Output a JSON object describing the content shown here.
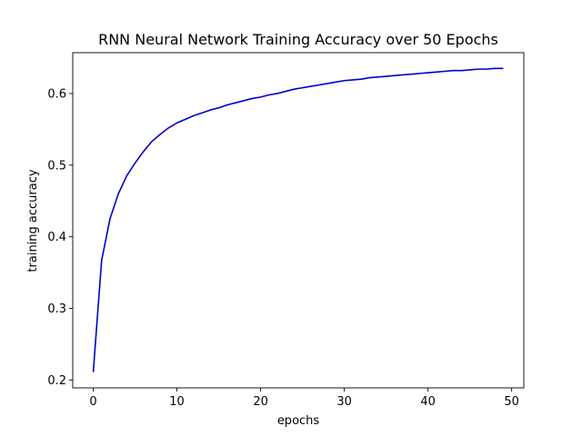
{
  "chart_data": {
    "type": "line",
    "title": "RNN Neural Network Training Accuracy over 50 Epochs",
    "xlabel": "epochs",
    "ylabel": "training accuracy",
    "xlim": [
      -2.45,
      51.45
    ],
    "ylim": [
      0.189,
      0.657
    ],
    "xticks": [
      0,
      10,
      20,
      30,
      40,
      50
    ],
    "yticks": [
      0.2,
      0.3,
      0.4,
      0.5,
      0.6
    ],
    "grid": false,
    "legend": "none",
    "series": [
      {
        "color": "#0000cc",
        "x": [
          0,
          1,
          2,
          3,
          4,
          5,
          6,
          7,
          8,
          9,
          10,
          11,
          12,
          13,
          14,
          15,
          16,
          17,
          18,
          19,
          20,
          21,
          22,
          23,
          24,
          25,
          26,
          27,
          28,
          29,
          30,
          31,
          32,
          33,
          34,
          35,
          36,
          37,
          38,
          39,
          40,
          41,
          42,
          43,
          44,
          45,
          46,
          47,
          48,
          49
        ],
        "y": [
          0.211,
          0.367,
          0.425,
          0.46,
          0.485,
          0.503,
          0.519,
          0.533,
          0.543,
          0.552,
          0.559,
          0.564,
          0.569,
          0.573,
          0.577,
          0.58,
          0.584,
          0.587,
          0.59,
          0.593,
          0.595,
          0.598,
          0.6,
          0.603,
          0.606,
          0.608,
          0.61,
          0.612,
          0.614,
          0.616,
          0.618,
          0.619,
          0.62,
          0.622,
          0.623,
          0.624,
          0.625,
          0.626,
          0.627,
          0.628,
          0.629,
          0.63,
          0.631,
          0.632,
          0.632,
          0.633,
          0.634,
          0.634,
          0.635,
          0.635
        ]
      }
    ]
  }
}
